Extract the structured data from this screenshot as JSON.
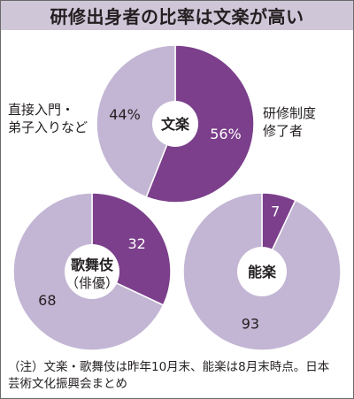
{
  "title": "研修出身者の比率は文楽が高い",
  "colors": {
    "primary": "#7b3f8b",
    "secondary": "#c3b6d4",
    "title_bg": "#cfc6d8"
  },
  "chart_data": [
    {
      "type": "pie",
      "center_label": "文楽",
      "slices": [
        {
          "label": "研修制度修了者",
          "value": 56,
          "display": "56%"
        },
        {
          "label": "直接入門・弟子入りなど",
          "value": 44,
          "display": "44%"
        }
      ]
    },
    {
      "type": "pie",
      "center_label": "歌舞伎",
      "center_sublabel": "（俳優）",
      "slices": [
        {
          "label": "研修制度修了者",
          "value": 32,
          "display": "32"
        },
        {
          "label": "直接入門・弟子入りなど",
          "value": 68,
          "display": "68"
        }
      ]
    },
    {
      "type": "pie",
      "center_label": "能楽",
      "slices": [
        {
          "label": "研修制度修了者",
          "value": 7,
          "display": "7"
        },
        {
          "label": "直接入門・弟子入りなど",
          "value": 93,
          "display": "93"
        }
      ]
    }
  ],
  "labels": {
    "left": [
      "直接入門・",
      "弟子入りなど"
    ],
    "right": [
      "研修制度",
      "修了者"
    ]
  },
  "note": [
    "（注）文楽・歌舞伎は昨年10月末、能楽は8月末時点。日本",
    "芸術文化振興会まとめ"
  ]
}
